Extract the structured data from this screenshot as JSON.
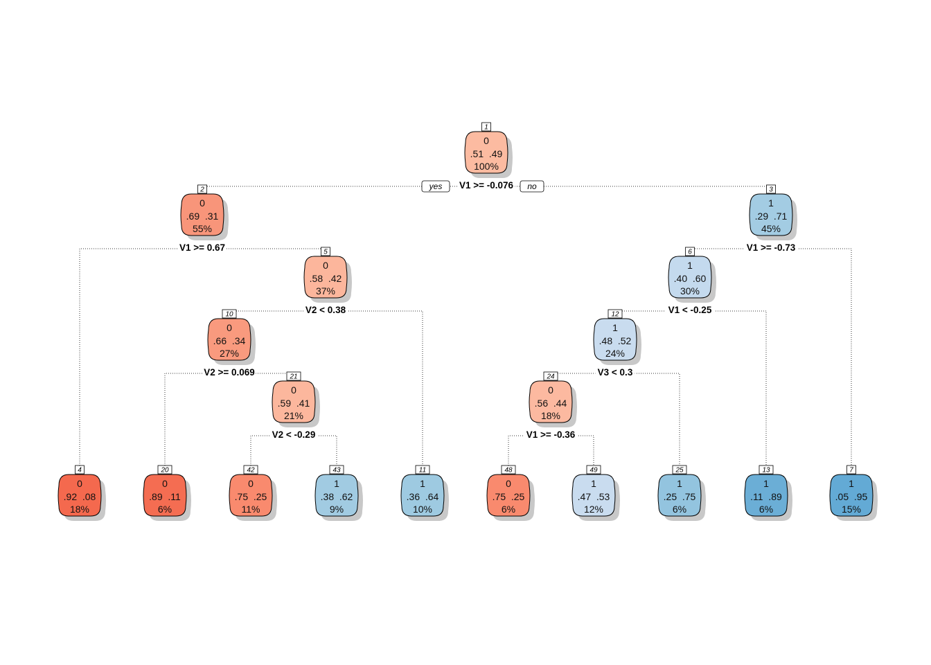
{
  "tree": {
    "yes_label": "yes",
    "no_label": "no",
    "nodes": [
      {
        "id": "1",
        "class": "0",
        "probs": ".51  .49",
        "pct": "100%",
        "split": "V1 >= -0.076",
        "left": "2",
        "right": "3",
        "color": "#fcbba1"
      },
      {
        "id": "2",
        "class": "0",
        "probs": ".69  .31",
        "pct": "55%",
        "split": "V1 >= 0.67",
        "left": "4",
        "right": "5",
        "color": "#f8957a"
      },
      {
        "id": "3",
        "class": "1",
        "probs": ".29  .71",
        "pct": "45%",
        "split": "V1 >= -0.73",
        "left": "6",
        "right": "7",
        "color": "#a3cce3"
      },
      {
        "id": "4",
        "class": "0",
        "probs": ".92  .08",
        "pct": "18%",
        "color": "#f4694e"
      },
      {
        "id": "5",
        "class": "0",
        "probs": ".58  .42",
        "pct": "37%",
        "split": "V2 < 0.38",
        "left": "10",
        "right": "11",
        "color": "#fcb69c"
      },
      {
        "id": "6",
        "class": "1",
        "probs": ".40  .60",
        "pct": "30%",
        "split": "V1 < -0.25",
        "left": "12",
        "right": "13",
        "color": "#c4daee"
      },
      {
        "id": "7",
        "class": "1",
        "probs": ".05  .95",
        "pct": "15%",
        "color": "#63aad5"
      },
      {
        "id": "10",
        "class": "0",
        "probs": ".66  .34",
        "pct": "27%",
        "split": "V2 >= 0.069",
        "left": "20",
        "right": "21",
        "color": "#f99a7e"
      },
      {
        "id": "11",
        "class": "1",
        "probs": ".36  .64",
        "pct": "10%",
        "color": "#9ecae1"
      },
      {
        "id": "12",
        "class": "1",
        "probs": ".48  .52",
        "pct": "24%",
        "split": "V3 < 0.3",
        "left": "24",
        "right": "25",
        "color": "#c9dcef"
      },
      {
        "id": "13",
        "class": "1",
        "probs": ".11  .89",
        "pct": "6%",
        "color": "#6baed6"
      },
      {
        "id": "20",
        "class": "0",
        "probs": ".89  .11",
        "pct": "6%",
        "color": "#f46d52"
      },
      {
        "id": "21",
        "class": "0",
        "probs": ".59  .41",
        "pct": "21%",
        "split": "V2 < -0.29",
        "left": "42",
        "right": "43",
        "color": "#fcb79d"
      },
      {
        "id": "24",
        "class": "0",
        "probs": ".56  .44",
        "pct": "18%",
        "split": "V1 >= -0.36",
        "left": "48",
        "right": "49",
        "color": "#fcb9a0"
      },
      {
        "id": "25",
        "class": "1",
        "probs": ".25  .75",
        "pct": "6%",
        "color": "#93c4df"
      },
      {
        "id": "42",
        "class": "0",
        "probs": ".75  .25",
        "pct": "11%",
        "color": "#f98a6e"
      },
      {
        "id": "43",
        "class": "1",
        "probs": ".38  .62",
        "pct": "9%",
        "color": "#a1cbe2"
      },
      {
        "id": "48",
        "class": "0",
        "probs": ".75  .25",
        "pct": "6%",
        "color": "#f98a6e"
      },
      {
        "id": "49",
        "class": "1",
        "probs": ".47  .53",
        "pct": "12%",
        "color": "#c9dcef"
      }
    ]
  }
}
